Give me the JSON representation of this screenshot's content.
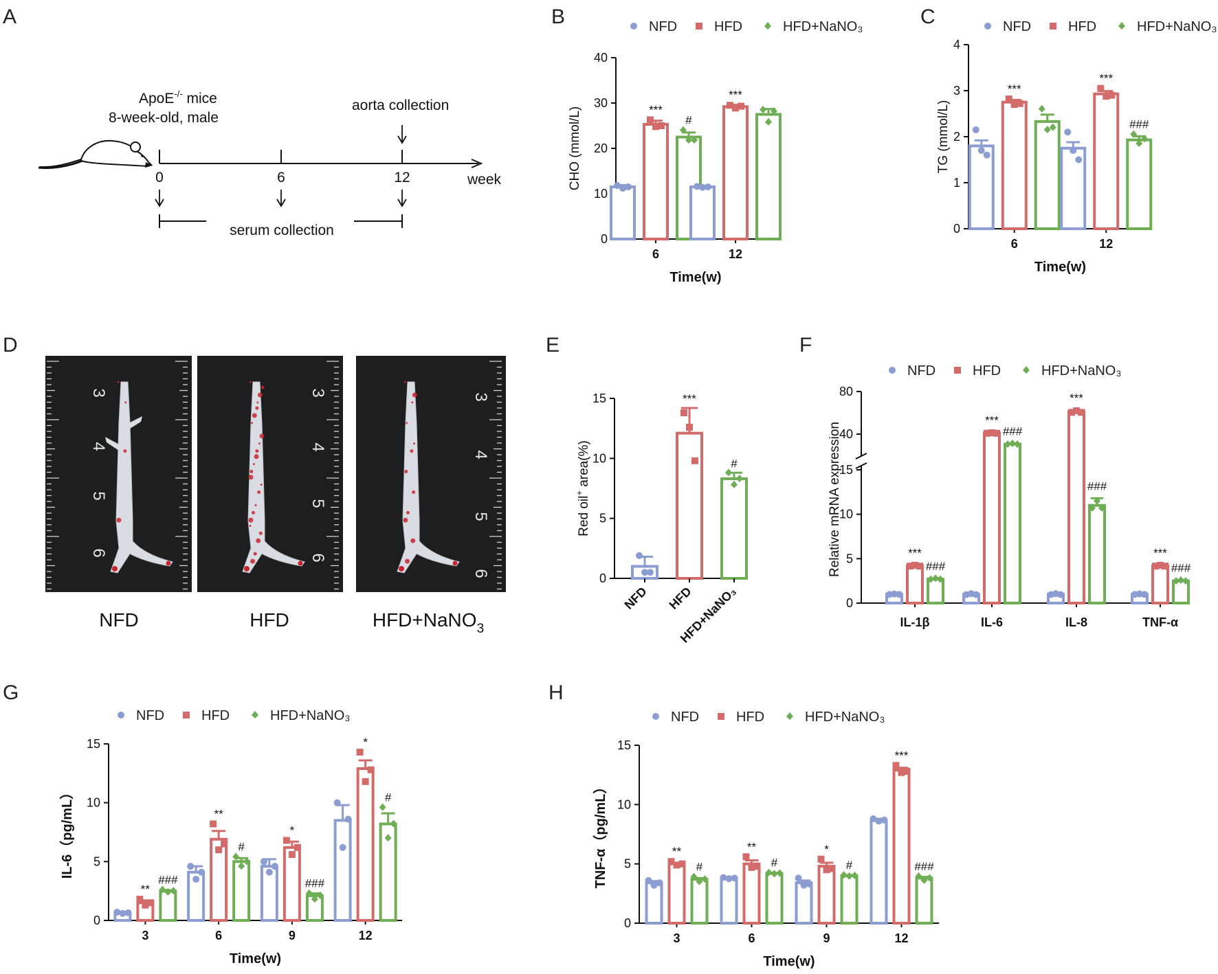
{
  "colors": {
    "NFD": "#8b9dd1",
    "HFD": "#d36b6b",
    "HFD+NaNO3": "#6fae55"
  },
  "panels": {
    "A": {
      "label": "A",
      "mice_line1": "ApoE",
      "mice_sup": "-/-",
      "mice_line1_suffix": " mice",
      "mice_line2": "8-week-old, male",
      "aorta": "aorta collection",
      "serum": "serum collection",
      "ticks": [
        "0",
        "6",
        "12"
      ],
      "unit": "week"
    },
    "D": {
      "label": "D",
      "photos": [
        {
          "name": "NFD",
          "ruler_marks": [
            "3",
            "4",
            "5",
            "6"
          ]
        },
        {
          "name": "HFD",
          "ruler_marks": [
            "3",
            "4",
            "5",
            "6"
          ]
        },
        {
          "name": "HFD+NaNO",
          "sub": "3",
          "ruler_marks": [
            "3",
            "4",
            "5",
            "6"
          ]
        }
      ]
    }
  },
  "legend": {
    "NFD": "NFD",
    "HFD": "HFD",
    "HFD_NaNO3": "HFD+NaNO₃"
  },
  "chart_data": [
    {
      "id": "B",
      "label": "B",
      "type": "bar",
      "ylabel": "CHO  (mmol/L)",
      "xlabel": "Time(w)",
      "ylim": [
        0,
        40
      ],
      "yticks": [
        "0",
        "10",
        "20",
        "30",
        "40"
      ],
      "categories": [
        "6",
        "12"
      ],
      "series": [
        {
          "name": "NFD",
          "values": [
            11.5,
            11.5
          ],
          "err": [
            0.4,
            0.2
          ],
          "points": [
            [
              11.8,
              11.2,
              11.5
            ],
            [
              11.6,
              11.4,
              11.5
            ]
          ]
        },
        {
          "name": "HFD",
          "values": [
            25.3,
            29.2
          ],
          "err": [
            0.8,
            0.4
          ],
          "points": [
            [
              26.3,
              24.8,
              25.0
            ],
            [
              29.5,
              28.9,
              29.3
            ]
          ]
        },
        {
          "name": "HFD+NaNO3",
          "values": [
            22.5,
            27.5
          ],
          "err": [
            1.0,
            1.2
          ],
          "points": [
            [
              24.0,
              21.8,
              21.8
            ],
            [
              28.5,
              25.8,
              28.2
            ]
          ]
        }
      ],
      "annotations": [
        {
          "series": "HFD",
          "category": "6",
          "text": "***"
        },
        {
          "series": "HFD+NaNO3",
          "category": "6",
          "text": "#"
        },
        {
          "series": "HFD",
          "category": "12",
          "text": "***"
        }
      ]
    },
    {
      "id": "C",
      "label": "C",
      "type": "bar",
      "ylabel": "TG  (mmol/L)",
      "xlabel": "Time(w)",
      "ylim": [
        0,
        4
      ],
      "yticks": [
        "0",
        "1",
        "2",
        "3",
        "4"
      ],
      "categories": [
        "6",
        "12"
      ],
      "series": [
        {
          "name": "NFD",
          "values": [
            1.8,
            1.75
          ],
          "err": [
            0.12,
            0.13
          ],
          "points": [
            [
              2.15,
              1.7,
              1.6
            ],
            [
              2.1,
              1.7,
              1.5
            ]
          ]
        },
        {
          "name": "HFD",
          "values": [
            2.75,
            2.93
          ],
          "err": [
            0.05,
            0.06
          ],
          "points": [
            [
              2.82,
              2.7,
              2.72
            ],
            [
              3.05,
              2.88,
              2.9
            ]
          ]
        },
        {
          "name": "HFD+NaNO3",
          "values": [
            2.33,
            1.93
          ],
          "err": [
            0.15,
            0.08
          ],
          "points": [
            [
              2.6,
              2.15,
              2.2
            ],
            [
              2.05,
              1.85,
              1.95
            ]
          ]
        }
      ],
      "annotations": [
        {
          "series": "HFD",
          "category": "6",
          "text": "***"
        },
        {
          "series": "HFD",
          "category": "12",
          "text": "***"
        },
        {
          "series": "HFD+NaNO3",
          "category": "12",
          "text": "###"
        }
      ]
    },
    {
      "id": "E",
      "label": "E",
      "type": "bar",
      "ylabel": "Red oil",
      "ylabel_sup": "+",
      "ylabel_suffix": " area(%)",
      "ylim": [
        0,
        15
      ],
      "yticks": [
        "0",
        "5",
        "10",
        "15"
      ],
      "categories": [
        "NFD",
        "HFD",
        "HFD+NaNO3"
      ],
      "category_labels": [
        "NFD",
        "HFD",
        "HFD+NaNO₃"
      ],
      "series": [
        {
          "name": "values",
          "values": [
            1.0,
            12.1,
            8.3
          ],
          "err": [
            0.8,
            2.1,
            0.5
          ],
          "points": [
            [
              1.9,
              0.5,
              0.5
            ],
            [
              13.8,
              12.6,
              9.8
            ],
            [
              8.8,
              7.8,
              8.3
            ]
          ]
        }
      ],
      "annotations": [
        {
          "category": "HFD",
          "text": "***"
        },
        {
          "category": "HFD+NaNO3",
          "text": "#"
        }
      ]
    },
    {
      "id": "F",
      "label": "F",
      "type": "bar",
      "ylabel": "Relative mRNA expression",
      "axis_break": {
        "lower": [
          0,
          15
        ],
        "upper": [
          15,
          80
        ]
      },
      "yticks": [
        "0",
        "5",
        "10",
        "15",
        "40",
        "80"
      ],
      "categories": [
        "IL-1β",
        "IL-6",
        "IL-8",
        "TNF-α"
      ],
      "series": [
        {
          "name": "NFD",
          "values": [
            1.0,
            1.0,
            1.0,
            1.0
          ],
          "err": [
            0.05,
            0.1,
            0.1,
            0.05
          ]
        },
        {
          "name": "HFD",
          "values": [
            4.2,
            41.0,
            61.0,
            4.2
          ],
          "err": [
            0.1,
            0.5,
            1.5,
            0.1
          ]
        },
        {
          "name": "HFD+NaNO3",
          "values": [
            2.7,
            33.0,
            11.0,
            2.5
          ],
          "err": [
            0.1,
            0.5,
            0.8,
            0.1
          ]
        }
      ],
      "annotations": [
        {
          "series": "HFD",
          "category": "IL-1β",
          "text": "***"
        },
        {
          "series": "HFD+NaNO3",
          "category": "IL-1β",
          "text": "###"
        },
        {
          "series": "HFD",
          "category": "IL-6",
          "text": "***"
        },
        {
          "series": "HFD+NaNO3",
          "category": "IL-6",
          "text": "###"
        },
        {
          "series": "HFD",
          "category": "IL-8",
          "text": "***"
        },
        {
          "series": "HFD+NaNO3",
          "category": "IL-8",
          "text": "###"
        },
        {
          "series": "HFD",
          "category": "TNF-α",
          "text": "***"
        },
        {
          "series": "HFD+NaNO3",
          "category": "TNF-α",
          "text": "###"
        }
      ]
    },
    {
      "id": "G",
      "label": "G",
      "type": "bar",
      "ylabel": "IL-6（pg/mL）",
      "xlabel": "Time(w)",
      "ylim": [
        0,
        15
      ],
      "yticks": [
        "0",
        "5",
        "10",
        "15"
      ],
      "categories": [
        "3",
        "6",
        "9",
        "12"
      ],
      "series": [
        {
          "name": "NFD",
          "values": [
            0.65,
            4.1,
            4.6,
            8.5
          ],
          "err": [
            0.05,
            0.5,
            0.6,
            1.3
          ],
          "points": [
            [
              0.7,
              0.6,
              0.65
            ],
            [
              4.6,
              3.5,
              4.1
            ],
            [
              5.0,
              4.1,
              4.6
            ],
            [
              10.0,
              6.2,
              8.6
            ]
          ]
        },
        {
          "name": "HFD",
          "values": [
            1.5,
            6.9,
            6.2,
            12.9
          ],
          "err": [
            0.2,
            0.7,
            0.5,
            0.7
          ],
          "points": [
            [
              1.8,
              1.3,
              1.5
            ],
            [
              8.2,
              6.0,
              6.5
            ],
            [
              6.8,
              5.6,
              6.2
            ],
            [
              14.3,
              11.8,
              12.8
            ]
          ]
        },
        {
          "name": "HFD+NaNO3",
          "values": [
            2.5,
            5.0,
            2.1,
            8.2
          ],
          "err": [
            0.08,
            0.3,
            0.2,
            0.9
          ],
          "points": [
            [
              2.6,
              2.4,
              2.5
            ],
            [
              5.4,
              4.6,
              5.0
            ],
            [
              2.3,
              1.8,
              2.1
            ],
            [
              9.6,
              7.0,
              8.2
            ]
          ]
        }
      ],
      "annotations": [
        {
          "series": "HFD",
          "category": "3",
          "text": "**"
        },
        {
          "series": "HFD+NaNO3",
          "category": "3",
          "text": "###"
        },
        {
          "series": "HFD",
          "category": "6",
          "text": "**"
        },
        {
          "series": "HFD+NaNO3",
          "category": "6",
          "text": "#"
        },
        {
          "series": "HFD",
          "category": "9",
          "text": "*"
        },
        {
          "series": "HFD+NaNO3",
          "category": "9",
          "text": "###"
        },
        {
          "series": "HFD",
          "category": "12",
          "text": "*"
        },
        {
          "series": "HFD+NaNO3",
          "category": "12",
          "text": "#"
        }
      ]
    },
    {
      "id": "H",
      "label": "H",
      "type": "bar",
      "ylabel": "TNF-α（pg/mL）",
      "xlabel": "Time(w)",
      "ylim": [
        0,
        15
      ],
      "yticks": [
        "0",
        "5",
        "10",
        "15"
      ],
      "categories": [
        "3",
        "6",
        "9",
        "12"
      ],
      "series": [
        {
          "name": "NFD",
          "values": [
            3.4,
            3.8,
            3.4,
            8.7
          ],
          "err": [
            0.15,
            0.05,
            0.2,
            0.1
          ],
          "points": [
            [
              3.6,
              3.2,
              3.4
            ],
            [
              3.85,
              3.75,
              3.8
            ],
            [
              3.8,
              3.2,
              3.3
            ],
            [
              8.8,
              8.6,
              8.7
            ]
          ]
        },
        {
          "name": "HFD",
          "values": [
            5.0,
            5.0,
            4.8,
            12.9
          ],
          "err": [
            0.1,
            0.3,
            0.3,
            0.2
          ],
          "points": [
            [
              5.2,
              4.9,
              5.0
            ],
            [
              5.6,
              4.7,
              4.8
            ],
            [
              5.4,
              4.5,
              4.6
            ],
            [
              13.3,
              12.7,
              12.8
            ]
          ]
        },
        {
          "name": "HFD+NaNO3",
          "values": [
            3.7,
            4.2,
            4.0,
            3.8
          ],
          "err": [
            0.1,
            0.05,
            0.05,
            0.1
          ],
          "points": [
            [
              3.9,
              3.5,
              3.7
            ],
            [
              4.25,
              4.15,
              4.2
            ],
            [
              4.05,
              3.95,
              4.0
            ],
            [
              3.95,
              3.6,
              3.8
            ]
          ]
        }
      ],
      "annotations": [
        {
          "series": "HFD",
          "category": "3",
          "text": "**"
        },
        {
          "series": "HFD+NaNO3",
          "category": "3",
          "text": "#"
        },
        {
          "series": "HFD",
          "category": "6",
          "text": "**"
        },
        {
          "series": "HFD+NaNO3",
          "category": "6",
          "text": "#"
        },
        {
          "series": "HFD",
          "category": "9",
          "text": "*"
        },
        {
          "series": "HFD+NaNO3",
          "category": "9",
          "text": "#"
        },
        {
          "series": "HFD",
          "category": "12",
          "text": "***"
        },
        {
          "series": "HFD+NaNO3",
          "category": "12",
          "text": "###"
        }
      ]
    }
  ]
}
